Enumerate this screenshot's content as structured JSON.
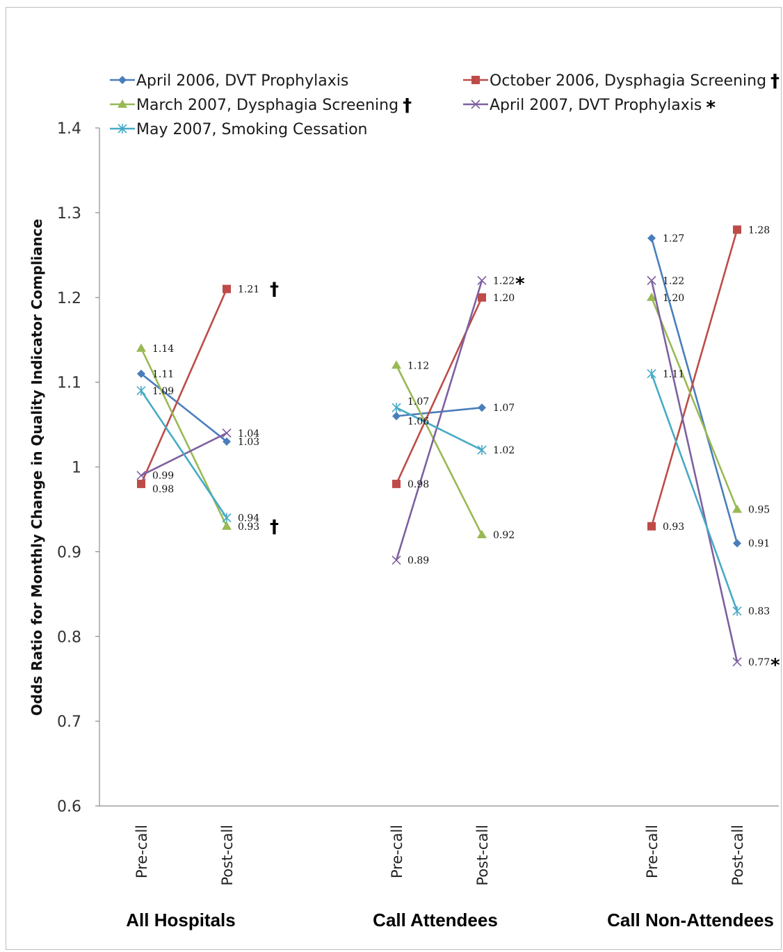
{
  "chart_data": {
    "type": "line",
    "ylabel": "Odds Ratio for Monthly Change in Quality Indicator Compliance",
    "ylim": [
      0.6,
      1.4
    ],
    "yticks": [
      "0.6",
      "0.7",
      "0.8",
      "0.9",
      "1",
      "1.1",
      "1.2",
      "1.3",
      "1.4"
    ],
    "categories": [
      "Pre-call",
      "Post-call"
    ],
    "groups": [
      "All Hospitals",
      "Call Attendees",
      "Call Non-Attendees"
    ],
    "grid": false,
    "legend_position": "top",
    "series": [
      {
        "name": "April 2006, DVT Prophylaxis",
        "name_mark": "",
        "color": "#4a7ebb",
        "marker": "diamond",
        "values": [
          [
            1.11,
            1.03
          ],
          [
            1.06,
            1.07
          ],
          [
            1.27,
            0.91
          ]
        ],
        "labels": [
          [
            "1.11",
            "1.03"
          ],
          [
            "1.06",
            "1.07"
          ],
          [
            "1.27",
            "0.91"
          ]
        ]
      },
      {
        "name": "October 2006, Dysphagia Screening",
        "name_mark": "†",
        "color": "#be4b48",
        "marker": "square",
        "values": [
          [
            0.98,
            1.21
          ],
          [
            0.98,
            1.2
          ],
          [
            0.93,
            1.28
          ]
        ],
        "labels": [
          [
            "0.98",
            "1.21"
          ],
          [
            "0.98",
            "1.20"
          ],
          [
            "0.93",
            "1.28"
          ]
        ]
      },
      {
        "name": "March 2007, Dysphagia Screening",
        "name_mark": "†",
        "color": "#98b954",
        "marker": "triangle",
        "values": [
          [
            1.14,
            0.93
          ],
          [
            1.12,
            0.92
          ],
          [
            1.2,
            0.95
          ]
        ],
        "labels": [
          [
            "1.14",
            "0.93"
          ],
          [
            "1.12",
            "0.92"
          ],
          [
            "1.20",
            "0.95"
          ]
        ]
      },
      {
        "name": "April 2007, DVT Prophylaxis",
        "name_mark": "*",
        "color": "#7d60a0",
        "marker": "x",
        "values": [
          [
            0.99,
            1.04
          ],
          [
            0.89,
            1.22
          ],
          [
            1.22,
            0.77
          ]
        ],
        "labels": [
          [
            "0.99",
            "1.04"
          ],
          [
            "0.89",
            "1.22"
          ],
          [
            "1.22",
            "0.77"
          ]
        ]
      },
      {
        "name": "May 2007, Smoking Cessation",
        "name_mark": "",
        "color": "#46aac5",
        "marker": "star",
        "values": [
          [
            1.09,
            0.94
          ],
          [
            1.07,
            1.02
          ],
          [
            1.11,
            0.83
          ]
        ],
        "labels": [
          [
            "1.09",
            "0.94"
          ],
          [
            "1.07",
            "1.02"
          ],
          [
            "1.11",
            "0.83"
          ]
        ]
      }
    ],
    "annotations": [
      {
        "text": "†",
        "group": 0,
        "category": 1,
        "series": 1
      },
      {
        "text": "†",
        "group": 0,
        "category": 1,
        "series": 2
      },
      {
        "text": "*",
        "group": 1,
        "category": 1,
        "series": 3
      },
      {
        "text": "*",
        "group": 2,
        "category": 1,
        "series": 3
      }
    ]
  }
}
